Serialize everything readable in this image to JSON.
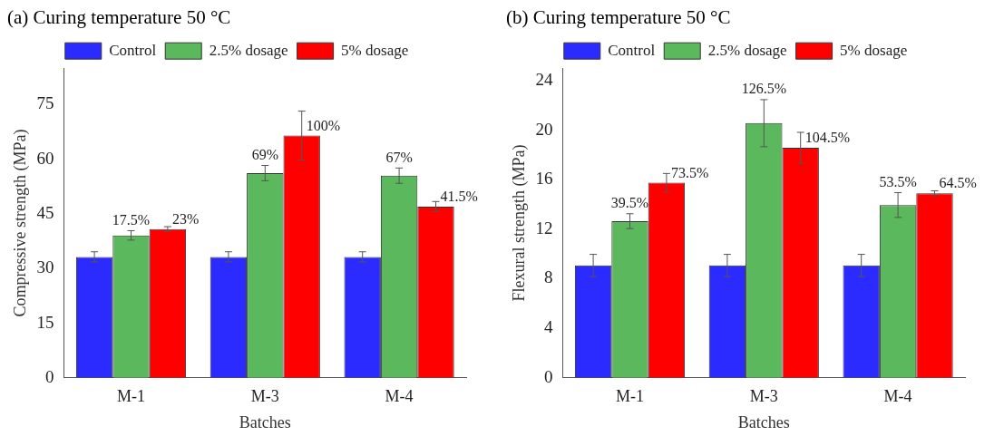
{
  "chart_data": [
    {
      "type": "bar",
      "title": "(a) Curing temperature 50 °C",
      "xlabel": "Batches",
      "ylabel": "Compressive strength (MPa)",
      "categories": [
        "M-1",
        "M-3",
        "M-4"
      ],
      "ylim": [
        0,
        85
      ],
      "yticks": [
        0,
        15,
        30,
        45,
        60,
        75
      ],
      "legend": "top",
      "series": [
        {
          "name": "Control",
          "color": "#2b2bff",
          "values": [
            33.2,
            33.2,
            33.2
          ],
          "errors": [
            1.4,
            1.4,
            1.4
          ]
        },
        {
          "name": "2.5% dosage",
          "color": "#5cb85c",
          "values": [
            39.1,
            56.2,
            55.5
          ],
          "errors": [
            1.3,
            2.1,
            2.1
          ]
        },
        {
          "name": "5% dosage",
          "color": "#ff0000",
          "values": [
            40.8,
            66.5,
            47.0
          ],
          "errors": [
            0.7,
            6.7,
            1.4
          ]
        }
      ],
      "annotations": [
        {
          "text": "17.5%",
          "x": "M-1",
          "y": 39.1
        },
        "23%",
        {
          "text": "69%",
          "x": "M-3",
          "y": 56.2
        },
        "100%",
        {
          "text": "67%",
          "x": "M-4",
          "y": 55.5
        },
        "41.5%"
      ]
    },
    {
      "type": "bar",
      "title": "(b) Curing temperature 50 °C",
      "xlabel": "Batches",
      "ylabel": "Flexural strength (MPa)",
      "categories": [
        "M-1",
        "M-3",
        "M-4"
      ],
      "ylim": [
        0,
        25
      ],
      "yticks": [
        0,
        4,
        8,
        12,
        16,
        20,
        24
      ],
      "legend": "top",
      "series": [
        {
          "name": "Control",
          "color": "#2b2bff",
          "values": [
            9.07,
            9.07,
            9.07
          ],
          "errors": [
            0.9,
            0.9,
            0.9
          ]
        },
        {
          "name": "2.5% dosage",
          "color": "#5cb85c",
          "values": [
            12.65,
            20.56,
            13.95
          ],
          "errors": [
            0.6,
            1.9,
            1.0
          ]
        },
        {
          "name": "5% dosage",
          "color": "#ff0000",
          "values": [
            15.75,
            18.57,
            14.9
          ],
          "errors": [
            0.75,
            1.25,
            0.2
          ]
        }
      ],
      "annotations": [
        {
          "text": "39.5%",
          "x": "M-1",
          "y": 12.65
        },
        "73.5%",
        {
          "text": "126.5%",
          "x": "M-3",
          "y": 20.56
        },
        "104.5%",
        {
          "text": "53.5%",
          "x": "M-4",
          "y": 13.95
        },
        "64.5%"
      ]
    }
  ]
}
